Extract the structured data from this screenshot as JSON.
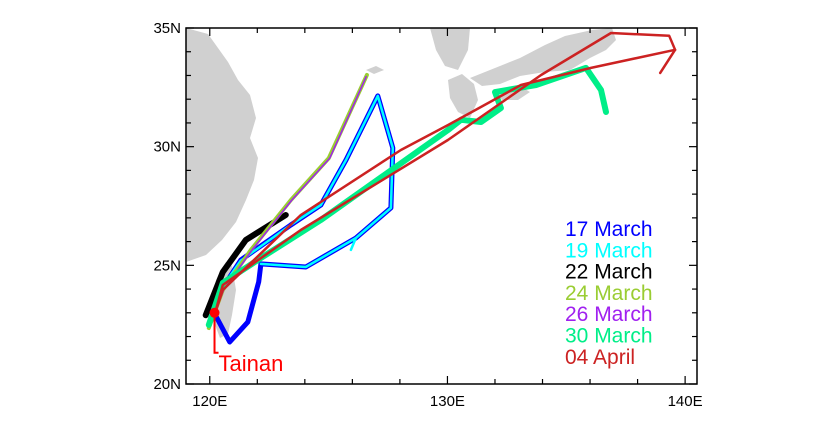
{
  "chart_data": {
    "type": "map-trajectories",
    "xlim": [
      119,
      140.5
    ],
    "ylim": [
      20,
      35
    ],
    "x_ticks": [
      {
        "value": 120,
        "label": "120E"
      },
      {
        "value": 130,
        "label": "130E"
      },
      {
        "value": 140,
        "label": "140E"
      }
    ],
    "y_ticks": [
      {
        "value": 20,
        "label": "20N"
      },
      {
        "value": 25,
        "label": "25N"
      },
      {
        "value": 30,
        "label": "30N"
      },
      {
        "value": 35,
        "label": "35N"
      }
    ],
    "origin": {
      "name": "Tainan",
      "lon": 120.2,
      "lat": 23.0,
      "color": "#ff0000"
    },
    "series": [
      {
        "name": "17 March",
        "color": "#0000ff",
        "width": 5,
        "points": [
          [
            120.21,
            22.95
          ],
          [
            120.84,
            21.77
          ],
          [
            121.6,
            22.61
          ],
          [
            122.06,
            24.3
          ],
          [
            122.15,
            25.06
          ],
          [
            124.04,
            24.93
          ],
          [
            126.15,
            26.15
          ],
          [
            127.62,
            27.42
          ],
          [
            127.7,
            29.95
          ],
          [
            127.07,
            32.14
          ],
          [
            125.73,
            29.44
          ],
          [
            124.67,
            27.54
          ],
          [
            123.41,
            26.7
          ],
          [
            121.31,
            25.23
          ],
          [
            120.21,
            23.54
          ]
        ]
      },
      {
        "name": "19 March",
        "color": "#00ffff",
        "width": 2.5,
        "points": [
          [
            120.21,
            22.95
          ],
          [
            120.4,
            23.9
          ],
          [
            121.3,
            25.2
          ],
          [
            123.4,
            26.7
          ],
          [
            124.67,
            27.54
          ],
          [
            125.73,
            29.44
          ],
          [
            127.07,
            32.14
          ],
          [
            127.7,
            29.95
          ],
          [
            127.62,
            27.42
          ],
          [
            126.15,
            26.15
          ],
          [
            124.04,
            24.93
          ],
          [
            122.15,
            25.06
          ],
          [
            124.04,
            24.93
          ],
          [
            126.15,
            26.15
          ],
          [
            125.94,
            25.65
          ]
        ]
      },
      {
        "name": "22 March",
        "color": "#000000",
        "width": 6,
        "points": [
          [
            119.83,
            22.9
          ],
          [
            120.55,
            24.72
          ],
          [
            121.52,
            26.07
          ],
          [
            123.2,
            27.12
          ]
        ]
      },
      {
        "name": "24 March",
        "color": "#9acd32",
        "width": 4,
        "points": [
          [
            119.96,
            22.36
          ],
          [
            120.55,
            23.96
          ],
          [
            121.73,
            25.65
          ],
          [
            123.41,
            27.75
          ],
          [
            125.01,
            29.52
          ],
          [
            126.61,
            33.02
          ]
        ]
      },
      {
        "name": "26 March",
        "color": "#a020f0",
        "width": 1.5,
        "points": [
          [
            120.0,
            22.45
          ],
          [
            120.6,
            24.0
          ],
          [
            121.78,
            25.65
          ],
          [
            123.45,
            27.75
          ],
          [
            125.05,
            29.52
          ],
          [
            126.58,
            32.95
          ]
        ]
      },
      {
        "name": "30 March",
        "color": "#00ee88",
        "width": 6,
        "points": [
          [
            119.96,
            22.49
          ],
          [
            120.55,
            24.26
          ],
          [
            122.15,
            25.31
          ],
          [
            124.67,
            26.91
          ],
          [
            130.02,
            30.7
          ],
          [
            130.57,
            31.13
          ],
          [
            131.41,
            31.04
          ],
          [
            132.25,
            31.63
          ],
          [
            132.0,
            32.3
          ],
          [
            133.73,
            32.6
          ],
          [
            135.83,
            33.32
          ],
          [
            136.46,
            32.39
          ],
          [
            136.67,
            31.46
          ]
        ]
      },
      {
        "name": "04 April",
        "color": "#cc2222",
        "width": 2.5,
        "points": [
          [
            120.21,
            22.95
          ],
          [
            120.55,
            24.17
          ],
          [
            123.83,
            26.49
          ],
          [
            130.02,
            30.28
          ],
          [
            133.94,
            33.02
          ],
          [
            136.88,
            34.79
          ],
          [
            139.33,
            34.67
          ],
          [
            139.58,
            34.08
          ],
          [
            138.95,
            33.11
          ]
        ]
      },
      {
        "name": "04 April (return)",
        "legend": false,
        "color": "#cc2222",
        "width": 2.5,
        "points": [
          [
            139.58,
            34.08
          ],
          [
            136.04,
            33.32
          ],
          [
            133.09,
            32.6
          ],
          [
            130.02,
            30.91
          ],
          [
            128.04,
            29.86
          ],
          [
            123.83,
            27.12
          ],
          [
            120.55,
            23.96
          ],
          [
            120.21,
            22.95
          ]
        ]
      }
    ],
    "legend": [
      "17 March",
      "19 March",
      "22 March",
      "24 March",
      "26 March",
      "30 March",
      "04 April"
    ],
    "legend_position": "bottom-right"
  }
}
